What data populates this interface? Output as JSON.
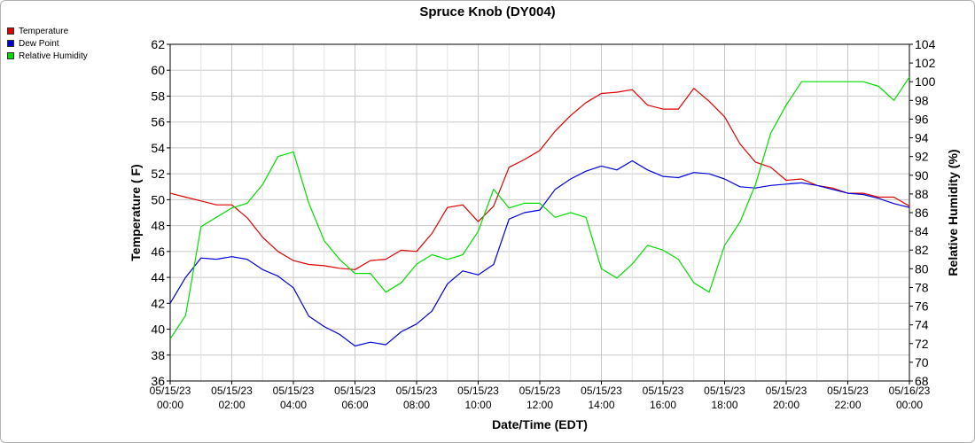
{
  "chart_data": {
    "type": "line",
    "title": "Spruce Knob (DY004)",
    "xlabel": "Date/Time (EDT)",
    "ylabel_left": "Temperature ( F)",
    "ylabel_right": "Relative Humidity (%)",
    "ylim_left": [
      36,
      62
    ],
    "ylim_right": [
      68,
      104
    ],
    "yticks_left": [
      "36",
      "38",
      "40",
      "42",
      "44",
      "46",
      "48",
      "50",
      "52",
      "54",
      "56",
      "58",
      "60",
      "62"
    ],
    "yticks_right": [
      "68",
      "70",
      "72",
      "74",
      "76",
      "78",
      "80",
      "82",
      "84",
      "86",
      "88",
      "90",
      "92",
      "94",
      "96",
      "98",
      "100",
      "102",
      "104"
    ],
    "xticks": [
      {
        "date": "05/15/23",
        "time": "00:00"
      },
      {
        "date": "05/15/23",
        "time": "02:00"
      },
      {
        "date": "05/15/23",
        "time": "04:00"
      },
      {
        "date": "05/15/23",
        "time": "06:00"
      },
      {
        "date": "05/15/23",
        "time": "08:00"
      },
      {
        "date": "05/15/23",
        "time": "10:00"
      },
      {
        "date": "05/15/23",
        "time": "12:00"
      },
      {
        "date": "05/15/23",
        "time": "14:00"
      },
      {
        "date": "05/15/23",
        "time": "16:00"
      },
      {
        "date": "05/15/23",
        "time": "18:00"
      },
      {
        "date": "05/15/23",
        "time": "20:00"
      },
      {
        "date": "05/15/23",
        "time": "22:00"
      },
      {
        "date": "05/16/23",
        "time": "00:00"
      }
    ],
    "x_hours": [
      0,
      0.5,
      1,
      1.5,
      2,
      2.5,
      3,
      3.5,
      4,
      4.5,
      5,
      5.5,
      6,
      6.5,
      7,
      7.5,
      8,
      8.5,
      9,
      9.5,
      10,
      10.5,
      11,
      11.5,
      12,
      12.5,
      13,
      13.5,
      14,
      14.5,
      15,
      15.5,
      16,
      16.5,
      17,
      17.5,
      18,
      18.5,
      19,
      19.5,
      20,
      20.5,
      21,
      21.5,
      22,
      22.5,
      23,
      23.5,
      24
    ],
    "grid": true,
    "legend_position": "top-left",
    "series": [
      {
        "name": "Temperature",
        "color": "#e00000",
        "axis": "left",
        "values": [
          50.5,
          50.2,
          49.9,
          49.6,
          49.6,
          48.6,
          47.1,
          46.0,
          45.3,
          45.0,
          44.9,
          44.7,
          44.6,
          45.3,
          45.4,
          46.1,
          46.0,
          47.4,
          49.4,
          49.6,
          48.3,
          49.5,
          52.5,
          53.1,
          53.8,
          55.3,
          56.5,
          57.5,
          58.2,
          58.3,
          58.5,
          57.3,
          57.0,
          57.0,
          58.6,
          57.6,
          56.4,
          54.3,
          52.9,
          52.5,
          51.5,
          51.6,
          51.1,
          50.9,
          50.5,
          50.5,
          50.2,
          50.2,
          49.5
        ]
      },
      {
        "name": "Dew Point",
        "color": "#0000dd",
        "axis": "left",
        "values": [
          42.0,
          44.0,
          45.5,
          45.4,
          45.6,
          45.4,
          44.6,
          44.1,
          43.2,
          41.0,
          40.2,
          39.6,
          38.7,
          39.0,
          38.8,
          39.8,
          40.4,
          41.4,
          43.5,
          44.5,
          44.2,
          45.0,
          48.5,
          49.0,
          49.2,
          50.8,
          51.6,
          52.2,
          52.6,
          52.3,
          53.0,
          52.3,
          51.8,
          51.7,
          52.1,
          52.0,
          51.6,
          51.0,
          50.9,
          51.1,
          51.2,
          51.3,
          51.1,
          50.8,
          50.5,
          50.4,
          50.1,
          49.7,
          49.4
        ]
      },
      {
        "name": "Relative Humidity",
        "color": "#00dd00",
        "axis": "right",
        "values": [
          72.5,
          75.0,
          84.5,
          85.5,
          86.5,
          87.0,
          89.0,
          92.0,
          92.5,
          87.0,
          83.0,
          81.0,
          79.5,
          79.5,
          77.5,
          78.5,
          80.5,
          81.5,
          81.0,
          81.5,
          84.0,
          88.5,
          86.5,
          87.0,
          87.0,
          85.5,
          86.0,
          85.5,
          80.0,
          79.0,
          80.5,
          82.5,
          82.0,
          81.0,
          78.5,
          77.5,
          82.5,
          85.0,
          89.0,
          94.5,
          97.5,
          100.0,
          100.0,
          100.0,
          100.0,
          100.0,
          99.5,
          98.0,
          100.5
        ]
      }
    ]
  }
}
